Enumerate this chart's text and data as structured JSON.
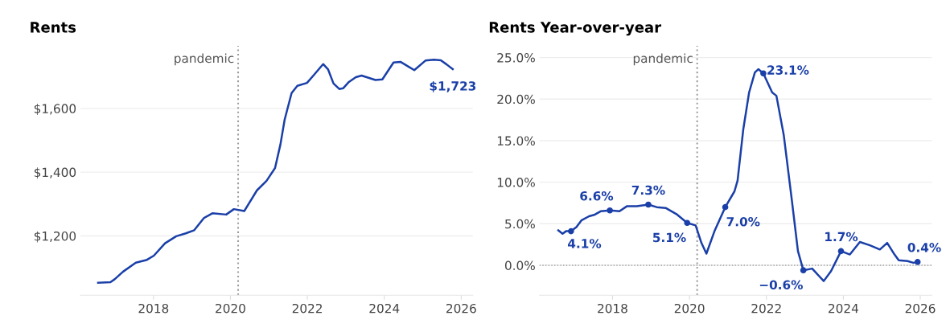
{
  "chart_data": [
    {
      "type": "line",
      "title": "Rents",
      "x": [
        2016.56,
        2016.88,
        2016.99,
        2017.21,
        2017.54,
        2017.83,
        2018.01,
        2018.3,
        2018.59,
        2018.84,
        2019.06,
        2019.31,
        2019.53,
        2019.89,
        2020.09,
        2020.36,
        2020.69,
        2020.94,
        2021.16,
        2021.3,
        2021.41,
        2021.59,
        2021.74,
        2021.99,
        2022.17,
        2022.41,
        2022.54,
        2022.68,
        2022.83,
        2022.93,
        2023.08,
        2023.26,
        2023.41,
        2023.77,
        2023.95,
        2024.24,
        2024.42,
        2024.78,
        2025.07,
        2025.29,
        2025.47,
        2025.62,
        2025.78
      ],
      "series": [
        {
          "color": "#1a3fa8",
          "values": [
            1053,
            1055,
            1064,
            1088,
            1116,
            1125,
            1138,
            1177,
            1199,
            1208,
            1218,
            1256,
            1271,
            1267,
            1284,
            1278,
            1343,
            1373,
            1413,
            1487,
            1565,
            1648,
            1671,
            1680,
            1705,
            1739,
            1722,
            1678,
            1661,
            1663,
            1683,
            1698,
            1703,
            1689,
            1691,
            1744,
            1746,
            1720,
            1750,
            1753,
            1751,
            1738,
            1723
          ]
        }
      ],
      "xlim": [
        2016.1,
        2026.3
      ],
      "xticks": [
        2018,
        2020,
        2022,
        2024,
        2026
      ],
      "ylim": [
        1014,
        1796
      ],
      "yticks": [
        {
          "value": 1200,
          "label": "$1,200"
        },
        {
          "value": 1400,
          "label": "$1,400"
        },
        {
          "value": 1600,
          "label": "$1,600"
        }
      ],
      "grid": "y",
      "ref_lines": [
        {
          "axis": "x",
          "value": 2020.2,
          "label": "pandemic",
          "color": "#9e9e9e",
          "line_style": "dotted"
        }
      ],
      "annotations": [
        {
          "text": "$1,723",
          "x": 2025.78,
          "y": 1723
        }
      ]
    },
    {
      "type": "line",
      "title": "Rents Year-over-year",
      "x": [
        2016.59,
        2016.7,
        2016.79,
        2016.92,
        2017.06,
        2017.19,
        2017.39,
        2017.54,
        2017.69,
        2017.93,
        2018.18,
        2018.37,
        2018.63,
        2018.93,
        2019.15,
        2019.38,
        2019.68,
        2019.94,
        2020.16,
        2020.31,
        2020.44,
        2020.65,
        2020.93,
        2021.17,
        2021.25,
        2021.4,
        2021.55,
        2021.7,
        2021.79,
        2021.92,
        2022.15,
        2022.26,
        2022.45,
        2022.67,
        2022.82,
        2022.96,
        2023.19,
        2023.49,
        2023.68,
        2023.94,
        2024.17,
        2024.43,
        2024.69,
        2024.95,
        2025.14,
        2025.33,
        2025.44,
        2025.67,
        2025.82,
        2025.93
      ],
      "series": [
        {
          "color": "#1a3fa8",
          "values": [
            4.2,
            3.8,
            4.1,
            4.1,
            4.6,
            5.4,
            5.9,
            6.1,
            6.5,
            6.6,
            6.5,
            7.1,
            7.1,
            7.3,
            7.0,
            6.9,
            6.1,
            5.1,
            4.8,
            2.7,
            1.4,
            4.1,
            7.0,
            8.9,
            10.2,
            16.4,
            20.8,
            23.2,
            23.6,
            23.1,
            20.8,
            20.4,
            15.7,
            7.5,
            1.7,
            -0.6,
            -0.4,
            -1.9,
            -0.7,
            1.7,
            1.3,
            2.8,
            2.4,
            1.9,
            2.7,
            1.3,
            0.6,
            0.5,
            0.3,
            0.4
          ]
        }
      ],
      "xlim": [
        2016.1,
        2026.3
      ],
      "xticks": [
        2018,
        2020,
        2022,
        2024,
        2026
      ],
      "ylim": [
        -3.6,
        26.4
      ],
      "yticks": [
        {
          "value": 0,
          "label": "0.0%"
        },
        {
          "value": 5,
          "label": "5.0%"
        },
        {
          "value": 10,
          "label": "10.0%"
        },
        {
          "value": 15,
          "label": "15.0%"
        },
        {
          "value": 20,
          "label": "20.0%"
        },
        {
          "value": 25,
          "label": "25.0%"
        }
      ],
      "grid": "y",
      "ref_lines": [
        {
          "axis": "x",
          "value": 2020.2,
          "label": "pandemic",
          "color": "#9e9e9e",
          "line_style": "dotted"
        },
        {
          "axis": "y",
          "value": 0,
          "color": "#9e9e9e",
          "line_style": "dotted"
        }
      ],
      "annotations": [
        {
          "text": "4.1%",
          "x": 2016.92,
          "y": 4.1
        },
        {
          "text": "6.6%",
          "x": 2017.93,
          "y": 6.6
        },
        {
          "text": "7.3%",
          "x": 2018.93,
          "y": 7.3
        },
        {
          "text": "5.1%",
          "x": 2019.94,
          "y": 5.1
        },
        {
          "text": "7.0%",
          "x": 2020.93,
          "y": 7.0
        },
        {
          "text": "23.1%",
          "x": 2021.92,
          "y": 23.1
        },
        {
          "text": "−0.6%",
          "x": 2022.96,
          "y": -0.6
        },
        {
          "text": "1.7%",
          "x": 2023.94,
          "y": 1.7
        },
        {
          "text": "0.4%",
          "x": 2025.93,
          "y": 0.4
        }
      ]
    }
  ]
}
